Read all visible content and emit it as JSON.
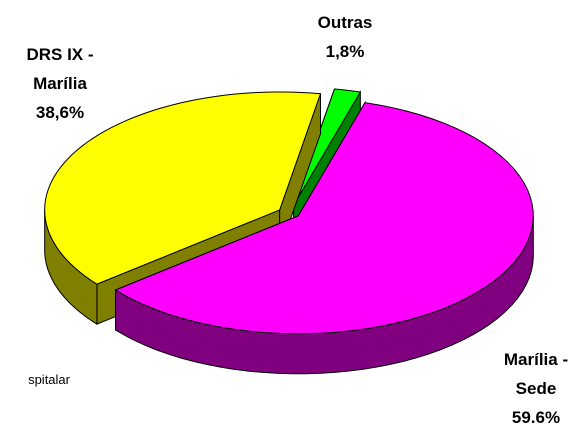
{
  "chart_data": {
    "type": "pie",
    "categories": [
      "Outras",
      "Marília - Sede",
      "DRS IX - Marília"
    ],
    "values": [
      1.8,
      59.6,
      38.6
    ],
    "value_labels": [
      "1,8%",
      "59.6%",
      "38,6%"
    ],
    "colors": [
      "#00ff00",
      "#ff00ff",
      "#ffff00"
    ],
    "annotation": "spitalar"
  }
}
